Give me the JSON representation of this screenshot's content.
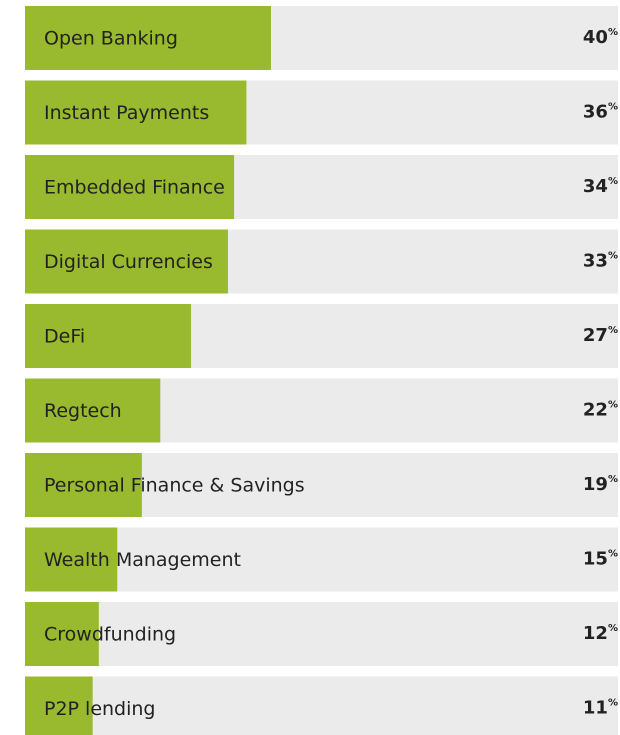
{
  "chart_data": {
    "type": "bar",
    "categories": [
      "Open Banking",
      "Instant Payments",
      "Embedded Finance",
      "Digital Currencies",
      "DeFi",
      "Regtech",
      "Personal Finance & Savings",
      "Wealth Management",
      "Crowdfunding",
      "P2P lending"
    ],
    "values": [
      40,
      36,
      34,
      33,
      27,
      22,
      19,
      15,
      12,
      11
    ],
    "value_labels": [
      "40%",
      "36%",
      "34%",
      "33%",
      "27%",
      "22%",
      "19%",
      "15%",
      "12%",
      "11%"
    ],
    "color": "#99b92e",
    "track_color": "#ebebeb"
  }
}
